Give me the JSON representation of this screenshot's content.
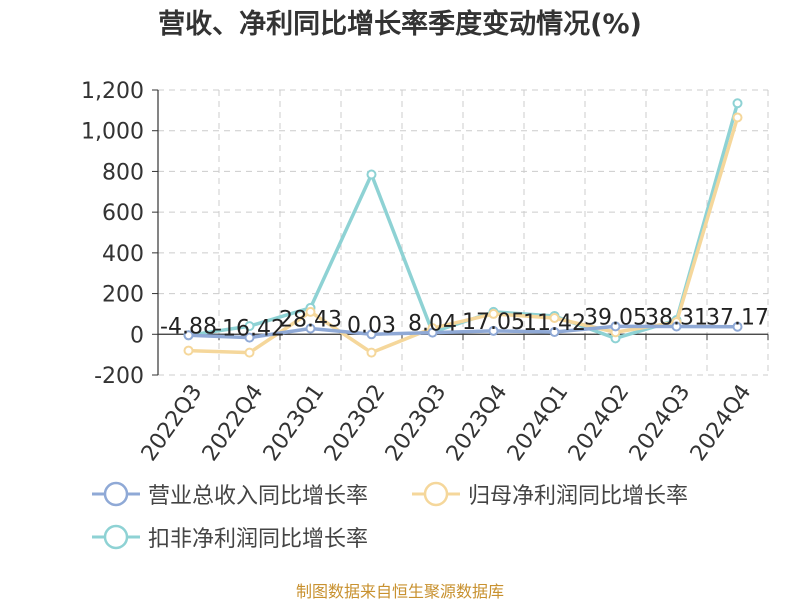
{
  "chart_data": {
    "type": "line",
    "title": "营收、净利同比增长率季度变动情况(%)",
    "categories": [
      "2022Q3",
      "2022Q4",
      "2023Q1",
      "2023Q2",
      "2023Q3",
      "2023Q4",
      "2024Q1",
      "2024Q2",
      "2024Q3",
      "2024Q4"
    ],
    "ylim": [
      -200,
      1200
    ],
    "yticks": [
      "-200",
      "0",
      "200",
      "400",
      "600",
      "800",
      "1,000",
      "1,200"
    ],
    "grid": true,
    "legend_position": "bottom",
    "series": [
      {
        "name": "营业总收入同比增长率",
        "color": "#8fa9d6",
        "values": [
          -4.88,
          -16.42,
          28.43,
          0.03,
          8.04,
          17.05,
          11.42,
          39.05,
          38.31,
          37.17
        ],
        "labels": [
          "-4.88",
          "-16.42",
          "28.43",
          "0.03",
          "8.04",
          "17.05",
          "11.42",
          "39.05",
          "38.31",
          "37.17"
        ]
      },
      {
        "name": "归母净利润同比增长率",
        "color": "#f5d79b",
        "values": [
          -80,
          -90,
          110,
          -90,
          30,
          100,
          80,
          10,
          60,
          1065
        ]
      },
      {
        "name": "扣非净利润同比增长率",
        "color": "#8ed2d4",
        "values": [
          -5,
          40,
          130,
          785,
          10,
          110,
          90,
          -20,
          70,
          1135
        ]
      }
    ]
  },
  "footer": {
    "source": "制图数据来自恒生聚源数据库"
  }
}
